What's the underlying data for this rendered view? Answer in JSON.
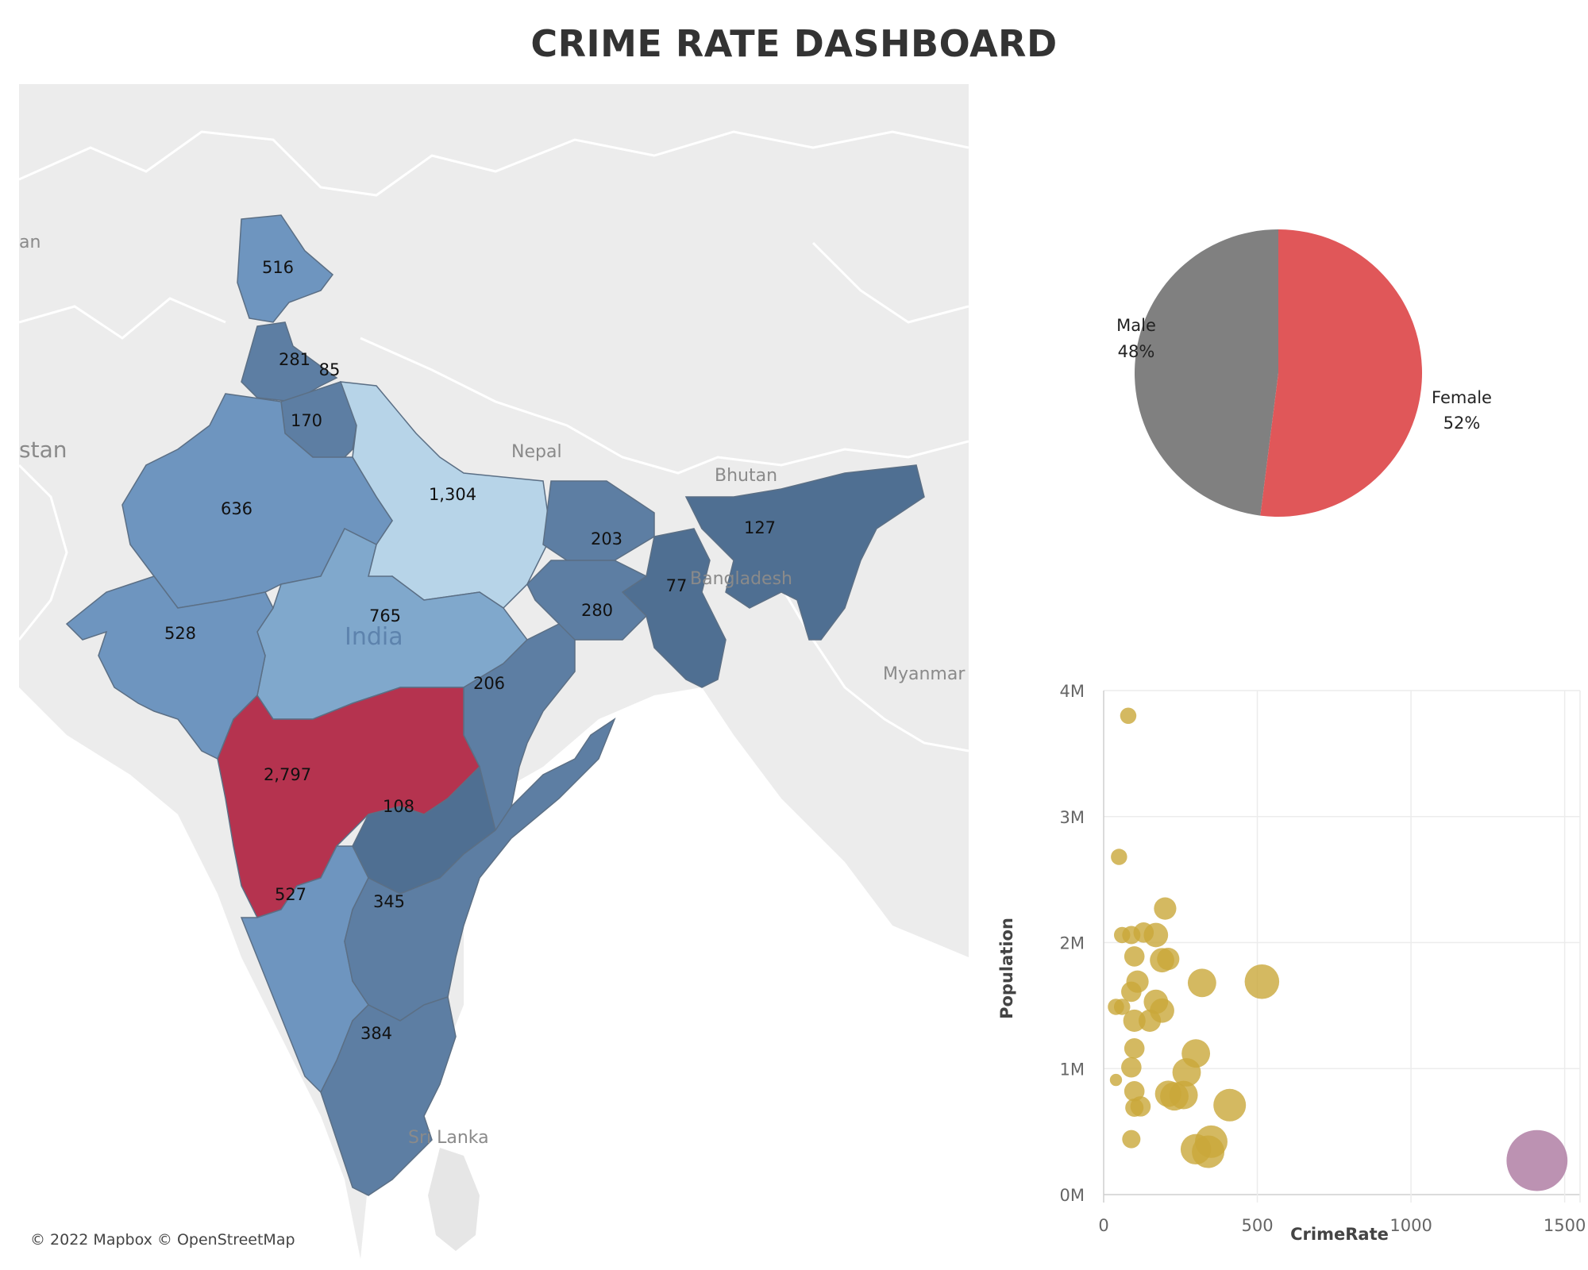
{
  "dashboard": {
    "title": "CRIME RATE DASHBOARD"
  },
  "map": {
    "attribution": "© 2022 Mapbox © OpenStreetMap",
    "country_labels": {
      "nepal": "Nepal",
      "bhutan": "Bhutan",
      "bangladesh": "Bangladesh",
      "india": "India",
      "myanmar": "Myanmar",
      "sri_lanka": "Sri Lanka",
      "pakistan_fragment": "stan",
      "left_fragment": "an"
    },
    "colors": {
      "background": "#ececec",
      "highest": "#b5334f",
      "lightest": "#b7d4e8",
      "light": "#80a8cc",
      "mid": "#6e95bf",
      "dark": "#5d7ea3",
      "darkest": "#4f6f92"
    },
    "state_values": {
      "jammu_kashmir": "516",
      "punjab": "281",
      "himachal": "85",
      "haryana": "170",
      "rajasthan": "636",
      "uttar_pradesh": "1,304",
      "bihar": "203",
      "northeast": "127",
      "west_bengal": "77",
      "jharkhand": "280",
      "madhya_pradesh": "765",
      "gujarat": "528",
      "chhattisgarh": "206",
      "maharashtra": "2,797",
      "telangana": "108",
      "karnataka": "527",
      "andhra_pradesh": "345",
      "tamil_nadu": "384"
    }
  },
  "chart_data": [
    {
      "type": "pie",
      "slices": [
        {
          "label": "Male",
          "value": 48,
          "display": "48%",
          "color": "#808080"
        },
        {
          "label": "Female",
          "value": 52,
          "display": "52%",
          "color": "#e05759"
        }
      ]
    },
    {
      "type": "scatter",
      "xlabel": "CrimeRate",
      "ylabel": "Population",
      "xlim": [
        0,
        1550
      ],
      "ylim": [
        0,
        4000000
      ],
      "x_ticks": [
        "0",
        "500",
        "1000",
        "1500"
      ],
      "y_ticks": [
        "0M",
        "1M",
        "2M",
        "3M",
        "4M"
      ],
      "grid": true,
      "colors": {
        "default": "#c9a83a",
        "highlight": "#b07fa4"
      },
      "points": [
        {
          "x": 80,
          "y": 3800000,
          "size": 8
        },
        {
          "x": 50,
          "y": 2680000,
          "size": 8
        },
        {
          "x": 200,
          "y": 2270000,
          "size": 11
        },
        {
          "x": 60,
          "y": 2060000,
          "size": 8
        },
        {
          "x": 90,
          "y": 2060000,
          "size": 9
        },
        {
          "x": 130,
          "y": 2080000,
          "size": 10
        },
        {
          "x": 170,
          "y": 2060000,
          "size": 12
        },
        {
          "x": 100,
          "y": 1890000,
          "size": 10
        },
        {
          "x": 190,
          "y": 1860000,
          "size": 12
        },
        {
          "x": 210,
          "y": 1870000,
          "size": 11
        },
        {
          "x": 320,
          "y": 1680000,
          "size": 14
        },
        {
          "x": 515,
          "y": 1690000,
          "size": 17
        },
        {
          "x": 110,
          "y": 1690000,
          "size": 11
        },
        {
          "x": 90,
          "y": 1610000,
          "size": 10
        },
        {
          "x": 170,
          "y": 1530000,
          "size": 12
        },
        {
          "x": 40,
          "y": 1490000,
          "size": 8
        },
        {
          "x": 60,
          "y": 1490000,
          "size": 8
        },
        {
          "x": 190,
          "y": 1460000,
          "size": 12
        },
        {
          "x": 100,
          "y": 1380000,
          "size": 11
        },
        {
          "x": 150,
          "y": 1380000,
          "size": 11
        },
        {
          "x": 100,
          "y": 1160000,
          "size": 10
        },
        {
          "x": 300,
          "y": 1120000,
          "size": 14
        },
        {
          "x": 90,
          "y": 1010000,
          "size": 10
        },
        {
          "x": 270,
          "y": 970000,
          "size": 14
        },
        {
          "x": 40,
          "y": 910000,
          "size": 6
        },
        {
          "x": 100,
          "y": 820000,
          "size": 10
        },
        {
          "x": 210,
          "y": 800000,
          "size": 13
        },
        {
          "x": 230,
          "y": 780000,
          "size": 14
        },
        {
          "x": 260,
          "y": 790000,
          "size": 14
        },
        {
          "x": 120,
          "y": 700000,
          "size": 10
        },
        {
          "x": 410,
          "y": 710000,
          "size": 16
        },
        {
          "x": 100,
          "y": 690000,
          "size": 9
        },
        {
          "x": 90,
          "y": 440000,
          "size": 9
        },
        {
          "x": 350,
          "y": 420000,
          "size": 16
        },
        {
          "x": 300,
          "y": 360000,
          "size": 15
        },
        {
          "x": 340,
          "y": 340000,
          "size": 16
        },
        {
          "x": 1410,
          "y": 270000,
          "size": 30,
          "highlight": true
        }
      ]
    }
  ]
}
